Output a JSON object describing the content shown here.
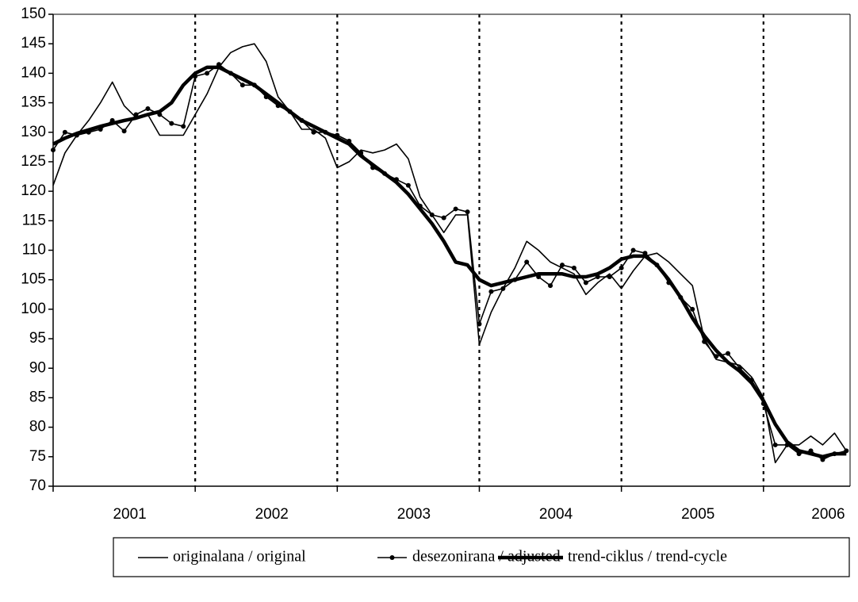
{
  "chart_data": {
    "type": "line",
    "categories": [
      null,
      null,
      null,
      null,
      null,
      null,
      "2001",
      null,
      null,
      null,
      null,
      null,
      null,
      null,
      null,
      null,
      null,
      null,
      "2002",
      null,
      null,
      null,
      null,
      null,
      null,
      null,
      null,
      null,
      null,
      null,
      "2003",
      null,
      null,
      null,
      null,
      null,
      null,
      null,
      null,
      null,
      null,
      null,
      "2004",
      null,
      null,
      null,
      null,
      null,
      null,
      null,
      null,
      null,
      null,
      null,
      "2005",
      null,
      null,
      null,
      null,
      null,
      null,
      null,
      null,
      null,
      null,
      "2006",
      null,
      null
    ],
    "series": [
      {
        "name": "originalana / original",
        "color": "#000000",
        "width": 1.6,
        "marker": false,
        "values": [
          121,
          126.5,
          129.5,
          132,
          135,
          138.5,
          134.5,
          132.5,
          133,
          129.5,
          129.5,
          129.5,
          133,
          136.5,
          141,
          143.5,
          144.5,
          145,
          142,
          136,
          133.5,
          130.5,
          130.5,
          129,
          124,
          125,
          127,
          126.5,
          127,
          128,
          125.5,
          119,
          116,
          113,
          116,
          116,
          94,
          99.5,
          103.5,
          107,
          111.5,
          110,
          108,
          107,
          106,
          102.5,
          104.5,
          106,
          103.5,
          106.5,
          109,
          109.5,
          108,
          106,
          104,
          95,
          91.5,
          91,
          90.5,
          88.5,
          85,
          74,
          77,
          77,
          78.5,
          77,
          79,
          76
        ]
      },
      {
        "name": "desezonirana / adjusted",
        "color": "#000000",
        "width": 1.6,
        "marker": true,
        "values": [
          127,
          130,
          129.5,
          130,
          130.5,
          132,
          130.2,
          133,
          134,
          133,
          131.5,
          131,
          139.5,
          140,
          141.5,
          140,
          138,
          138,
          136,
          134.5,
          133.5,
          132,
          130,
          130,
          129.5,
          128.5,
          126.5,
          124,
          123,
          122,
          121,
          117.5,
          116,
          115.5,
          117,
          116.5,
          97.5,
          103,
          103.5,
          105,
          108,
          105.5,
          104,
          107.5,
          107,
          104.5,
          105.5,
          105.5,
          107,
          110,
          109.5,
          107.5,
          104.5,
          102,
          100,
          94.5,
          92,
          92.5,
          90,
          88,
          84,
          77,
          77,
          75.5,
          76,
          74.5,
          75.5,
          76
        ]
      },
      {
        "name": "trend-ciklus / trend-cycle",
        "color": "#000000",
        "width": 4.5,
        "marker": false,
        "values": [
          128,
          129,
          129.8,
          130.4,
          131,
          131.5,
          132,
          132.4,
          133,
          133.5,
          135,
          138,
          140,
          141,
          141,
          140,
          139,
          138,
          136.5,
          135,
          133.5,
          132,
          131,
          130,
          129,
          128,
          126,
          124.5,
          123,
          121.5,
          119.5,
          117,
          114.5,
          111.5,
          108,
          107.5,
          105,
          104,
          104.5,
          105,
          105.5,
          106,
          106,
          106,
          105.5,
          105.5,
          106,
          107,
          108.5,
          109,
          109,
          107.5,
          105,
          102,
          98.5,
          95.5,
          93,
          91,
          89.5,
          87.5,
          84.5,
          80.5,
          77.5,
          76,
          75.5,
          75,
          75.5,
          75.5
        ]
      }
    ],
    "ylim": [
      70,
      150
    ],
    "yticks": [
      70,
      75,
      80,
      85,
      90,
      95,
      100,
      105,
      110,
      115,
      120,
      125,
      130,
      135,
      140,
      145,
      150
    ],
    "grid": false
  }
}
